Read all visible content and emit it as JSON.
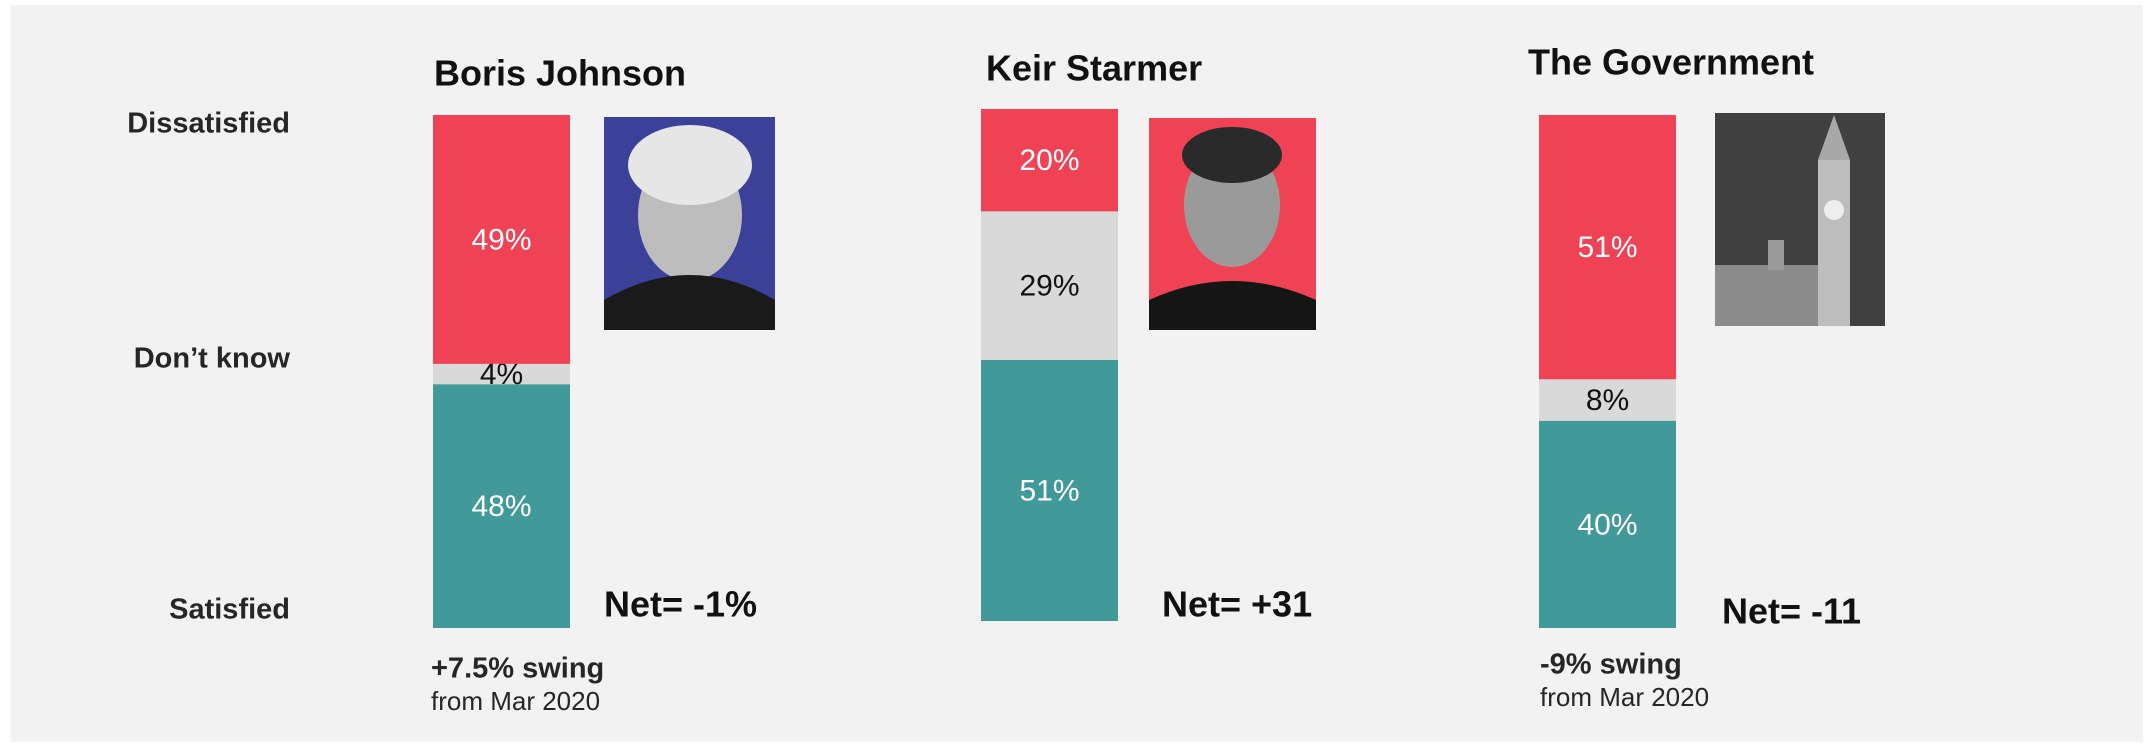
{
  "row_labels": [
    "Dissatisfied",
    "Don’t know",
    "Satisfied"
  ],
  "chart_data": [
    {
      "type": "bar",
      "title": "Boris Johnson",
      "series": [
        {
          "color": "#f04255",
          "values": [
            49
          ],
          "value_labels": [
            "49%"
          ]
        },
        {
          "color": "#d9d9d9",
          "values": [
            4
          ],
          "value_labels": [
            "4%"
          ]
        },
        {
          "color": "#41999a",
          "values": [
            48
          ],
          "value_labels": [
            "48%"
          ]
        }
      ],
      "net": "Net= -1%",
      "swing": "+7.5% swing",
      "swing_note": "from Mar 2020"
    },
    {
      "type": "bar",
      "title": "Keir Starmer",
      "series": [
        {
          "color": "#f04255",
          "values": [
            20
          ],
          "value_labels": [
            "20%"
          ]
        },
        {
          "color": "#d9d9d9",
          "values": [
            29
          ],
          "value_labels": [
            "29%"
          ]
        },
        {
          "color": "#41999a",
          "values": [
            51
          ],
          "value_labels": [
            "51%"
          ]
        }
      ],
      "net": "Net= +31"
    },
    {
      "type": "bar",
      "title": "The Government",
      "series": [
        {
          "color": "#f04255",
          "values": [
            51
          ],
          "value_labels": [
            "51%"
          ]
        },
        {
          "color": "#d9d9d9",
          "values": [
            8
          ],
          "value_labels": [
            "8%"
          ]
        },
        {
          "color": "#41999a",
          "values": [
            40
          ],
          "value_labels": [
            "40%"
          ]
        }
      ],
      "net": "Net= -11",
      "swing": "-9% swing",
      "swing_note": "from Mar 2020"
    }
  ]
}
